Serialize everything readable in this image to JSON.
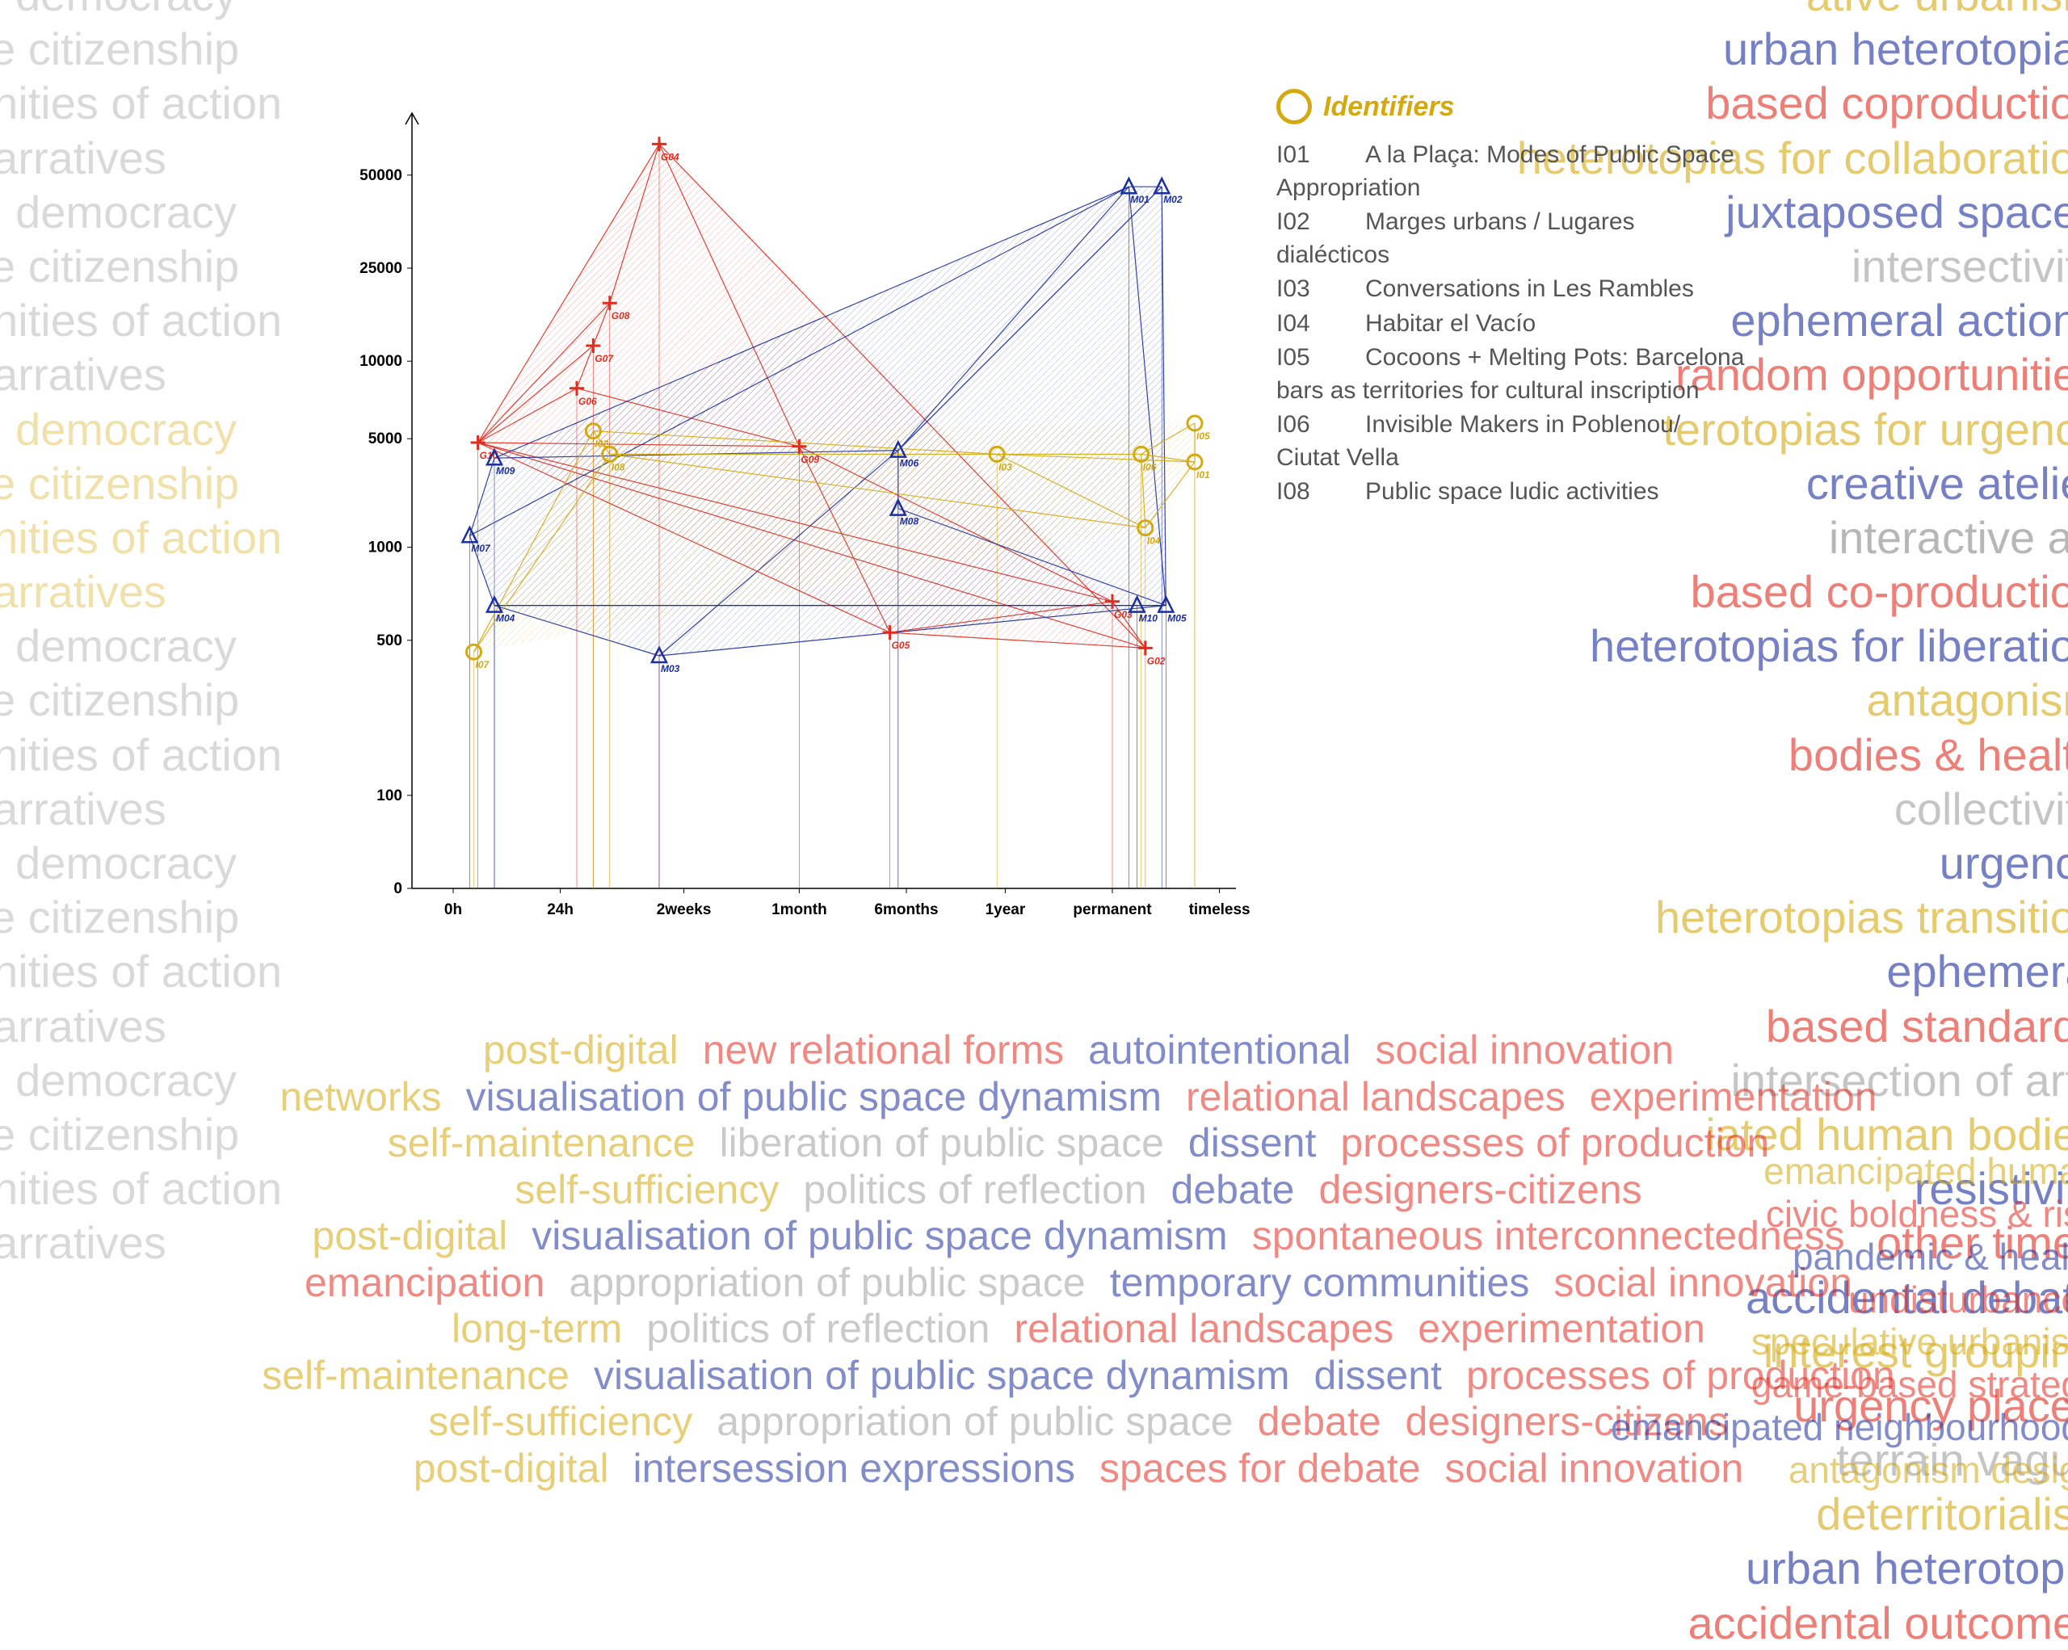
{
  "colors": {
    "red": "#e12b1e",
    "blue": "#1b2f9e",
    "gold": "#d4a90f",
    "grey": "#a0a0a0",
    "blackish": "#333333"
  },
  "chart": {
    "type": "scatter-network",
    "x_categories": [
      "0h",
      "24h",
      "2weeks",
      "1month",
      "6months",
      "1year",
      "permanent",
      "timeless"
    ],
    "x_positions": [
      0.05,
      0.18,
      0.33,
      0.47,
      0.6,
      0.72,
      0.85,
      0.98
    ],
    "y_ticks": [
      0,
      100,
      500,
      1000,
      5000,
      10000,
      25000,
      50000
    ],
    "y_positions": [
      1.0,
      0.88,
      0.68,
      0.56,
      0.42,
      0.32,
      0.2,
      0.08
    ],
    "axis_fontsize": 19,
    "axis_fontweight": 700,
    "series": [
      {
        "name": "G",
        "color": "#e12b1e",
        "marker": "plus",
        "points": [
          {
            "id": "G10",
            "x": 0.08,
            "y": 0.425
          },
          {
            "id": "G06",
            "x": 0.2,
            "y": 0.355
          },
          {
            "id": "G07",
            "x": 0.22,
            "y": 0.3
          },
          {
            "id": "G08",
            "x": 0.24,
            "y": 0.245
          },
          {
            "id": "G04",
            "x": 0.3,
            "y": 0.04
          },
          {
            "id": "G09",
            "x": 0.47,
            "y": 0.43
          },
          {
            "id": "G05",
            "x": 0.58,
            "y": 0.67
          },
          {
            "id": "G03",
            "x": 0.85,
            "y": 0.63
          },
          {
            "id": "G02",
            "x": 0.89,
            "y": 0.69
          }
        ],
        "edges": [
          [
            "G10",
            "G04"
          ],
          [
            "G10",
            "G06"
          ],
          [
            "G10",
            "G07"
          ],
          [
            "G10",
            "G08"
          ],
          [
            "G10",
            "G09"
          ],
          [
            "G10",
            "G05"
          ],
          [
            "G10",
            "G03"
          ],
          [
            "G10",
            "G02"
          ],
          [
            "G04",
            "G08"
          ],
          [
            "G04",
            "G09"
          ],
          [
            "G08",
            "G07"
          ],
          [
            "G07",
            "G06"
          ],
          [
            "G06",
            "G09"
          ],
          [
            "G09",
            "G05"
          ],
          [
            "G09",
            "G03"
          ],
          [
            "G05",
            "G02"
          ],
          [
            "G05",
            "G03"
          ],
          [
            "G03",
            "G02"
          ],
          [
            "G04",
            "G02"
          ]
        ]
      },
      {
        "name": "M",
        "color": "#1b2f9e",
        "marker": "triangle",
        "points": [
          {
            "id": "M07",
            "x": 0.07,
            "y": 0.545
          },
          {
            "id": "M04",
            "x": 0.1,
            "y": 0.635
          },
          {
            "id": "M09",
            "x": 0.1,
            "y": 0.445
          },
          {
            "id": "M03",
            "x": 0.3,
            "y": 0.7
          },
          {
            "id": "M06",
            "x": 0.59,
            "y": 0.435
          },
          {
            "id": "M08",
            "x": 0.59,
            "y": 0.51
          },
          {
            "id": "M01",
            "x": 0.87,
            "y": 0.095
          },
          {
            "id": "M02",
            "x": 0.91,
            "y": 0.095
          },
          {
            "id": "M05",
            "x": 0.915,
            "y": 0.635
          },
          {
            "id": "M10",
            "x": 0.88,
            "y": 0.635
          }
        ],
        "edges": [
          [
            "M07",
            "M04"
          ],
          [
            "M07",
            "M09"
          ],
          [
            "M07",
            "M01"
          ],
          [
            "M09",
            "M01"
          ],
          [
            "M09",
            "M06"
          ],
          [
            "M04",
            "M03"
          ],
          [
            "M04",
            "M10"
          ],
          [
            "M04",
            "M05"
          ],
          [
            "M03",
            "M06"
          ],
          [
            "M03",
            "M05"
          ],
          [
            "M06",
            "M01"
          ],
          [
            "M06",
            "M02"
          ],
          [
            "M06",
            "M08"
          ],
          [
            "M08",
            "M05"
          ],
          [
            "M01",
            "M02"
          ],
          [
            "M01",
            "M05"
          ],
          [
            "M02",
            "M05"
          ],
          [
            "M10",
            "M05"
          ]
        ]
      },
      {
        "name": "I",
        "color": "#d4a90f",
        "marker": "circle",
        "points": [
          {
            "id": "I07",
            "x": 0.075,
            "y": 0.695
          },
          {
            "id": "I02",
            "x": 0.22,
            "y": 0.41
          },
          {
            "id": "I08",
            "x": 0.24,
            "y": 0.44
          },
          {
            "id": "I03",
            "x": 0.71,
            "y": 0.44
          },
          {
            "id": "I06",
            "x": 0.885,
            "y": 0.44
          },
          {
            "id": "I04",
            "x": 0.89,
            "y": 0.535
          },
          {
            "id": "I01",
            "x": 0.95,
            "y": 0.45
          },
          {
            "id": "I05",
            "x": 0.95,
            "y": 0.4
          }
        ],
        "edges": [
          [
            "I07",
            "I02"
          ],
          [
            "I07",
            "I08"
          ],
          [
            "I02",
            "I08"
          ],
          [
            "I02",
            "I03"
          ],
          [
            "I08",
            "I03"
          ],
          [
            "I08",
            "I04"
          ],
          [
            "I03",
            "I06"
          ],
          [
            "I03",
            "I04"
          ],
          [
            "I03",
            "I01"
          ],
          [
            "I06",
            "I05"
          ],
          [
            "I06",
            "I01"
          ],
          [
            "I06",
            "I04"
          ],
          [
            "I01",
            "I05"
          ],
          [
            "I04",
            "I01"
          ]
        ]
      }
    ],
    "cross_edges": [
      {
        "from": [
          "M04",
          0.1,
          0.635
        ],
        "to": [
          "G05",
          0.58,
          0.67
        ],
        "color": "#6b4a2b"
      },
      {
        "from": [
          "M03",
          0.3,
          0.7
        ],
        "to": [
          "G09",
          0.47,
          0.43
        ],
        "color": "#6b4a2b"
      }
    ],
    "bg": "#ffffff",
    "grid_color": "#000000",
    "drop_line_width": 0.6
  },
  "legend": {
    "title": "Identifiers",
    "title_color": "#d4a90f",
    "circle_color": "#d4a90f",
    "title_fontsize": 34,
    "item_fontsize": 30,
    "items": [
      {
        "code": "I01",
        "label": "A la Plaça: Modes of Public Space Appropriation"
      },
      {
        "code": "I02",
        "label": "Marges urbans / Lugares dialécticos"
      },
      {
        "code": "I03",
        "label": "Conversations in Les Rambles"
      },
      {
        "code": "I04",
        "label": "Habitar el Vacío"
      },
      {
        "code": "I05",
        "label": "Cocoons + Melting Pots: Barcelona bars as territories for cultural inscription"
      },
      {
        "code": "I06",
        "label": "Invisible Makers in Poblenou/ Ciutat Vella"
      },
      {
        "code": "I08",
        "label": "Public space ludic activities"
      }
    ]
  },
  "bg_left": {
    "lines": [
      "al democracy",
      "ve citizenship",
      "unities of action",
      "narratives",
      "al democracy",
      "ve citizenship",
      "unities of action",
      "narratives",
      "al democracy",
      "ve citizenship",
      "unities of action",
      "narratives",
      "al democracy",
      "ve citizenship",
      "unities of action",
      "narratives",
      "al democracy",
      "ve citizenship",
      "unities of action",
      "narratives",
      "al democracy",
      "ve citizenship",
      "unities of action",
      "narratives"
    ]
  },
  "bg_right": {
    "chunks": [
      {
        "text": "ative urbanism",
        "color": "#d4a90f"
      },
      {
        "text": "urban heterotopias",
        "color": "#1b2f9e"
      },
      {
        "text": "based coproduction",
        "color": "#e12b1e"
      },
      {
        "text": "heterotopias for collaboration",
        "color": "#d4a90f"
      },
      {
        "text": "juxtaposed spaces",
        "color": "#1b2f9e"
      },
      {
        "text": "intersectivity",
        "color": "#a0a0a0"
      },
      {
        "text": "ephemeral actions",
        "color": "#1b2f9e"
      },
      {
        "text": "random opportunities",
        "color": "#e12b1e"
      },
      {
        "text": "terotopias for urgency",
        "color": "#d4a90f"
      },
      {
        "text": "creative atelier",
        "color": "#1b2f9e"
      },
      {
        "text": "interactive art",
        "color": "#888"
      },
      {
        "text": "based co-production",
        "color": "#e12b1e"
      },
      {
        "text": "heterotopias for liberation",
        "color": "#1b2f9e"
      },
      {
        "text": "antagonism",
        "color": "#d4a90f"
      },
      {
        "text": "bodies & health",
        "color": "#e12b1e"
      },
      {
        "text": "collectivity",
        "color": "#a0a0a0"
      },
      {
        "text": "urgency",
        "color": "#1b2f9e"
      },
      {
        "text": "heterotopias transition",
        "color": "#d4a90f"
      },
      {
        "text": "ephemeral",
        "color": "#1b2f9e"
      },
      {
        "text": "based standards",
        "color": "#e12b1e"
      },
      {
        "text": "intersection of arts",
        "color": "#a0a0a0"
      },
      {
        "text": "iated human bodies",
        "color": "#d4a90f"
      },
      {
        "text": "resistivity",
        "color": "#1b2f9e"
      },
      {
        "text": "other times",
        "color": "#e12b1e"
      },
      {
        "text": "accidental debate",
        "color": "#1b2f9e"
      },
      {
        "text": "interest grouping",
        "color": "#d4a90f"
      },
      {
        "text": "urgency placed",
        "color": "#e12b1e"
      },
      {
        "text": "terrain vague",
        "color": "#a0a0a0"
      },
      {
        "text": "deterritorialise",
        "color": "#d4a90f"
      },
      {
        "text": "urban heterotopia",
        "color": "#1b2f9e"
      },
      {
        "text": "accidental outcomes",
        "color": "#e12b1e"
      }
    ]
  },
  "bottom_cloud": {
    "rows": [
      [
        {
          "t": "post-digital",
          "c": "#d4a90f"
        },
        {
          "t": "new relational forms",
          "c": "#e12b1e"
        },
        {
          "t": "autointentional",
          "c": "#1b2f9e"
        },
        {
          "t": "social innovation",
          "c": "#e12b1e"
        }
      ],
      [
        {
          "t": "networks",
          "c": "#d4a90f"
        },
        {
          "t": "visualisation of public space dynamism",
          "c": "#1b2f9e"
        },
        {
          "t": "relational landscapes",
          "c": "#e12b1e"
        },
        {
          "t": "experimentation",
          "c": "#e12b1e"
        }
      ],
      [
        {
          "t": "self-maintenance",
          "c": "#d4a90f"
        },
        {
          "t": "liberation of public space",
          "c": "#a0a0a0"
        },
        {
          "t": "dissent",
          "c": "#1b2f9e"
        },
        {
          "t": "processes of production",
          "c": "#e12b1e"
        }
      ],
      [
        {
          "t": "self-sufficiency",
          "c": "#d4a90f"
        },
        {
          "t": "politics of reflection",
          "c": "#a0a0a0"
        },
        {
          "t": "debate",
          "c": "#1b2f9e"
        },
        {
          "t": "designers-citizens",
          "c": "#e12b1e"
        }
      ],
      [
        {
          "t": "post-digital",
          "c": "#d4a90f"
        },
        {
          "t": "visualisation of public space dynamism",
          "c": "#1b2f9e"
        },
        {
          "t": "spontaneous interconnectedness",
          "c": "#e12b1e"
        }
      ],
      [
        {
          "t": "emancipation",
          "c": "#e12b1e"
        },
        {
          "t": "appropriation of public space",
          "c": "#a0a0a0"
        },
        {
          "t": "temporary communities",
          "c": "#1b2f9e"
        },
        {
          "t": "social innovation",
          "c": "#e12b1e"
        }
      ],
      [
        {
          "t": "long-term",
          "c": "#d4a90f"
        },
        {
          "t": "politics of reflection",
          "c": "#a0a0a0"
        },
        {
          "t": "relational landscapes",
          "c": "#e12b1e"
        },
        {
          "t": "experimentation",
          "c": "#e12b1e"
        }
      ],
      [
        {
          "t": "self-maintenance",
          "c": "#d4a90f"
        },
        {
          "t": "visualisation of public space dynamism",
          "c": "#1b2f9e"
        },
        {
          "t": "dissent",
          "c": "#1b2f9e"
        },
        {
          "t": "processes of production",
          "c": "#e12b1e"
        }
      ],
      [
        {
          "t": "self-sufficiency",
          "c": "#d4a90f"
        },
        {
          "t": "appropriation of public space",
          "c": "#a0a0a0"
        },
        {
          "t": "debate",
          "c": "#e12b1e"
        },
        {
          "t": "designers-citizens",
          "c": "#e12b1e"
        }
      ],
      [
        {
          "t": "post-digital",
          "c": "#d4a90f"
        },
        {
          "t": "intersession expressions",
          "c": "#1b2f9e"
        },
        {
          "t": "spaces for debate",
          "c": "#e12b1e"
        },
        {
          "t": "social innovation",
          "c": "#e12b1e"
        }
      ]
    ]
  },
  "bottom_right": {
    "rows": [
      [
        {
          "t": "emancipated human",
          "c": "#d4a90f"
        }
      ],
      [
        {
          "t": "civic boldness & risk",
          "c": "#e12b1e"
        }
      ],
      [
        {
          "t": "pandemic & health",
          "c": "#1b2f9e"
        }
      ],
      [
        {
          "t": "undisturbances",
          "c": "#e12b1e"
        }
      ],
      [
        {
          "t": "speculative urbanism",
          "c": "#d4a90f"
        }
      ],
      [
        {
          "t": "game-based strategy",
          "c": "#e12b1e"
        }
      ],
      [
        {
          "t": "emancipated neighbourhoods",
          "c": "#1b2f9e"
        }
      ],
      [
        {
          "t": "antagonism design",
          "c": "#d4a90f"
        }
      ]
    ]
  }
}
